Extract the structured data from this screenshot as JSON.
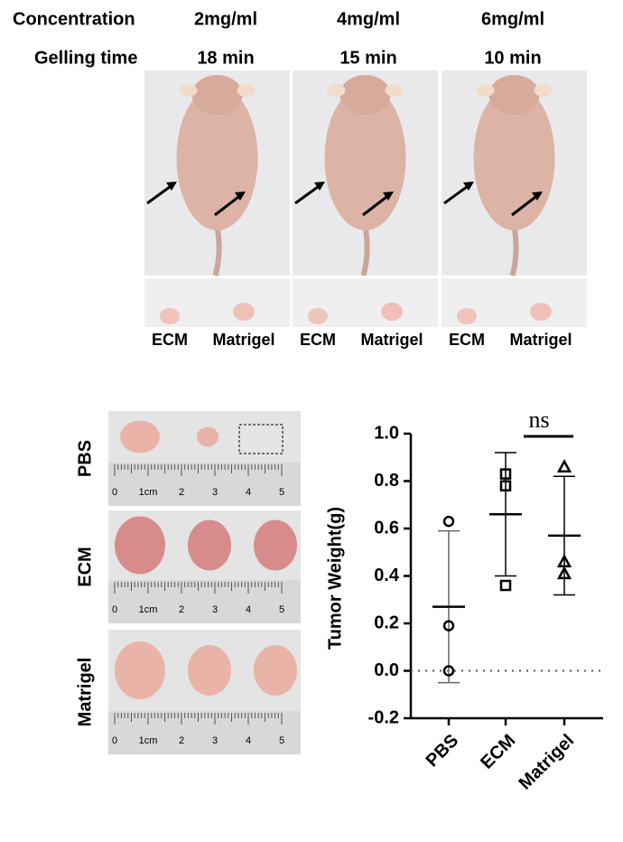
{
  "header": {
    "rows": [
      {
        "label": "Concentration",
        "values": [
          "2mg/ml",
          "4mg/ml",
          "6mg/ml"
        ]
      },
      {
        "label": "Gelling time",
        "values": [
          "18 min",
          "15 min",
          "10 min"
        ]
      }
    ]
  },
  "panels": [
    {
      "labels": [
        "ECM",
        "Matrigel"
      ]
    },
    {
      "labels": [
        "ECM",
        "Matrigel"
      ]
    },
    {
      "labels": [
        "ECM",
        "Matrigel"
      ]
    }
  ],
  "tumor_photos": {
    "rows": [
      "PBS",
      "ECM",
      "Matrigel"
    ],
    "ruler_labels": [
      "0",
      "1cm",
      "2",
      "3",
      "4",
      "5"
    ]
  },
  "chart_data": {
    "type": "scatter",
    "ylabel": "Tumor Weight(g)",
    "categories": [
      "PBS",
      "ECM",
      "Matrigel"
    ],
    "markers": [
      "circle",
      "square",
      "triangle"
    ],
    "points": [
      [
        0.63,
        0.19,
        0.0
      ],
      [
        0.83,
        0.78,
        0.36
      ],
      [
        0.86,
        0.46,
        0.41
      ]
    ],
    "means": [
      0.27,
      0.66,
      0.57
    ],
    "sds": [
      0.32,
      0.26,
      0.25
    ],
    "ylim": [
      -0.2,
      1.0
    ],
    "yticks": [
      {
        "value": -0.2,
        "label": "-0.2"
      },
      {
        "value": 0,
        "label": "0.0"
      },
      {
        "value": 0.2,
        "label": "0.2"
      },
      {
        "value": 0.4,
        "label": "0.4"
      },
      {
        "value": 0.6,
        "label": "0.6"
      },
      {
        "value": 0.8,
        "label": "0.8"
      },
      {
        "value": 1.0,
        "label": "1.0"
      }
    ],
    "zero_line": true,
    "annotation": "ns"
  }
}
